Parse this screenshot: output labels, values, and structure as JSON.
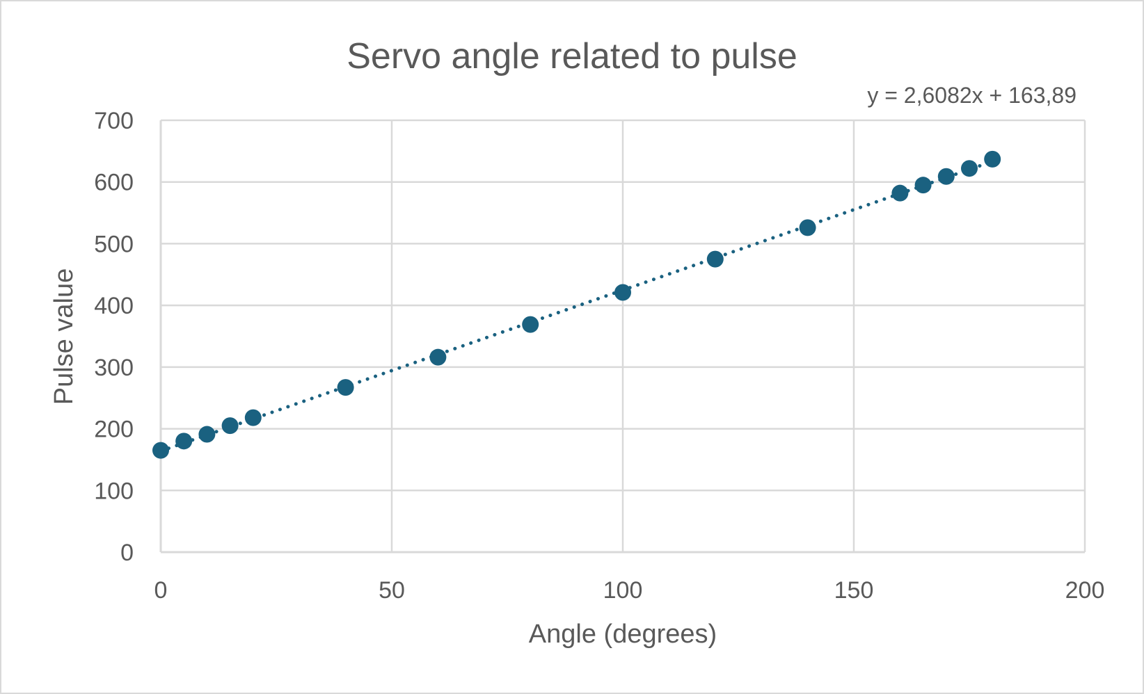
{
  "chart_data": {
    "type": "scatter",
    "title": "Servo angle related to pulse",
    "xlabel": "Angle (degrees)",
    "ylabel": "Pulse value",
    "xlim": [
      0,
      200
    ],
    "ylim": [
      0,
      700
    ],
    "x_ticks": [
      0,
      50,
      100,
      150,
      200
    ],
    "y_ticks": [
      0,
      100,
      200,
      300,
      400,
      500,
      600,
      700
    ],
    "x_tick_labels": [
      "0",
      "50",
      "100",
      "150",
      "200"
    ],
    "y_tick_labels": [
      "0",
      "100",
      "200",
      "300",
      "400",
      "500",
      "600",
      "700"
    ],
    "grid": true,
    "legend": "none",
    "series": [
      {
        "x": [
          0,
          5,
          10,
          15,
          20,
          40,
          60,
          80,
          100,
          120,
          140,
          160,
          165,
          170,
          175,
          180
        ],
        "y": [
          165,
          180,
          191,
          205,
          218,
          267,
          316,
          369,
          421,
          475,
          526,
          582,
          595,
          609,
          622,
          637
        ],
        "color": "#1a6180"
      }
    ],
    "trendline": {
      "type": "linear",
      "style": "dotted",
      "slope": 2.6082,
      "intercept": 163.89,
      "equation_label": "y = 2,6082x + 163,89",
      "color": "#1a6180"
    }
  },
  "colors": {
    "marker": "#1a6180",
    "gridline": "#d9d9d9",
    "text": "#595959"
  }
}
